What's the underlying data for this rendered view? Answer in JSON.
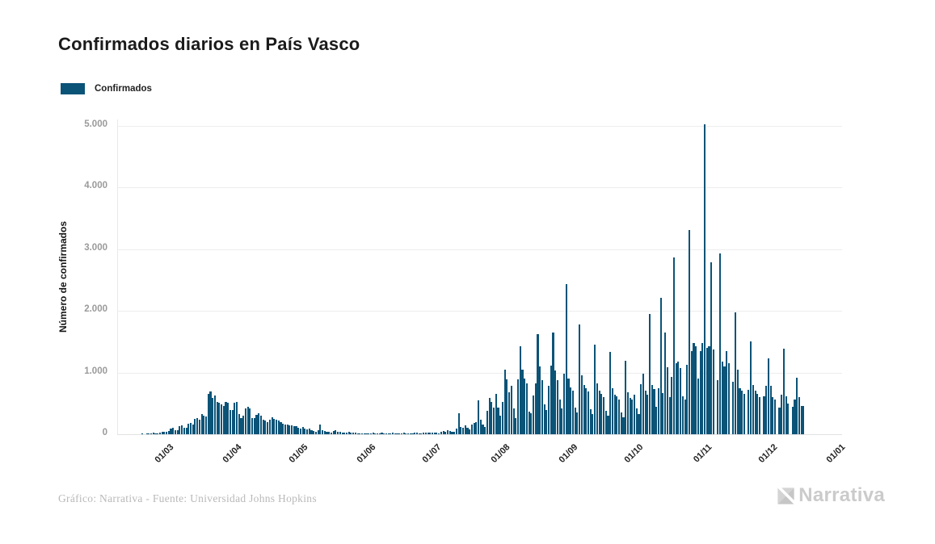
{
  "page": {
    "background": "#ffffff"
  },
  "header": {
    "title": "Confirmados diarios en País Vasco"
  },
  "legend": {
    "items": [
      {
        "label": "Confirmados",
        "color": "#0b5377"
      }
    ]
  },
  "footer": {
    "source_text": "Gráfico: Narrativa - Fuente: Universidad Johns Hopkins",
    "logo_text": "Narrativa",
    "logo_color": "#cbcbcb"
  },
  "chart_data": {
    "type": "bar",
    "title": "Confirmados diarios en País Vasco",
    "series_name": "Confirmados",
    "bar_color": "#0b5377",
    "xlabel": "",
    "ylabel": "Número de confirmados",
    "start_date": "2020-02-10",
    "ylim": [
      0,
      5100
    ],
    "grid": "horizontal",
    "legend_position": "top-left",
    "y_ticks": [
      {
        "label": "0",
        "value": 0
      },
      {
        "label": "1.000",
        "value": 1000
      },
      {
        "label": "2.000",
        "value": 2000
      },
      {
        "label": "3.000",
        "value": 3000
      },
      {
        "label": "4.000",
        "value": 4000
      },
      {
        "label": "5.000",
        "value": 5000
      }
    ],
    "x_ticks": [
      {
        "label": "01/03",
        "day_offset": 20
      },
      {
        "label": "01/04",
        "day_offset": 51
      },
      {
        "label": "01/05",
        "day_offset": 81
      },
      {
        "label": "01/06",
        "day_offset": 112
      },
      {
        "label": "01/07",
        "day_offset": 142
      },
      {
        "label": "01/08",
        "day_offset": 173
      },
      {
        "label": "01/09",
        "day_offset": 204
      },
      {
        "label": "01/10",
        "day_offset": 234
      },
      {
        "label": "01/11",
        "day_offset": 265
      },
      {
        "label": "01/12",
        "day_offset": 295
      },
      {
        "label": "01/01",
        "day_offset": 326
      }
    ],
    "axis_total_days": 330,
    "values": [
      0,
      0,
      0,
      0,
      0,
      0,
      0,
      0,
      0,
      0,
      0,
      8,
      0,
      5,
      12,
      15,
      22,
      14,
      18,
      25,
      35,
      45,
      40,
      50,
      95,
      110,
      70,
      60,
      135,
      145,
      105,
      100,
      170,
      185,
      160,
      245,
      260,
      240,
      330,
      300,
      290,
      660,
      690,
      590,
      630,
      525,
      515,
      480,
      460,
      520,
      510,
      395,
      390,
      515,
      520,
      330,
      265,
      300,
      420,
      440,
      415,
      265,
      260,
      310,
      340,
      305,
      240,
      220,
      200,
      240,
      270,
      255,
      230,
      220,
      195,
      175,
      155,
      160,
      140,
      150,
      125,
      130,
      110,
      90,
      120,
      95,
      75,
      90,
      65,
      55,
      45,
      70,
      160,
      60,
      50,
      40,
      35,
      25,
      55,
      60,
      45,
      35,
      30,
      25,
      20,
      35,
      30,
      25,
      20,
      18,
      15,
      12,
      10,
      15,
      12,
      8,
      20,
      15,
      10,
      8,
      25,
      18,
      12,
      10,
      15,
      20,
      12,
      8,
      10,
      15,
      22,
      18,
      12,
      10,
      18,
      25,
      20,
      15,
      12,
      20,
      28,
      25,
      20,
      30,
      25,
      20,
      15,
      35,
      50,
      45,
      60,
      55,
      40,
      35,
      90,
      340,
      120,
      110,
      140,
      100,
      80,
      160,
      180,
      200,
      550,
      240,
      160,
      120,
      380,
      585,
      520,
      430,
      650,
      430,
      300,
      520,
      1040,
      890,
      680,
      780,
      420,
      260,
      890,
      1430,
      1050,
      900,
      820,
      370,
      340,
      630,
      830,
      1620,
      1100,
      870,
      480,
      390,
      780,
      1110,
      1650,
      1030,
      880,
      560,
      420,
      980,
      2430,
      900,
      760,
      700,
      430,
      350,
      1780,
      950,
      800,
      740,
      690,
      410,
      330,
      1450,
      820,
      700,
      650,
      600,
      380,
      300,
      1330,
      750,
      640,
      610,
      560,
      350,
      280,
      1190,
      680,
      590,
      560,
      640,
      420,
      330,
      810,
      980,
      700,
      640,
      1955,
      800,
      730,
      450,
      750,
      2215,
      670,
      1650,
      1085,
      600,
      930,
      2870,
      1150,
      1180,
      1070,
      620,
      560,
      1120,
      3305,
      1350,
      1480,
      1430,
      900,
      1350,
      1480,
      5025,
      1400,
      1430,
      2780,
      1370,
      0,
      870,
      2935,
      1180,
      1100,
      1350,
      1150,
      0,
      850,
      1970,
      1050,
      740,
      700,
      650,
      0,
      720,
      1500,
      800,
      700,
      650,
      600,
      0,
      620,
      780,
      1230,
      780,
      600,
      560,
      0,
      430,
      640,
      1390,
      615,
      495,
      0,
      450,
      560,
      915,
      600,
      460,
      460
    ]
  }
}
